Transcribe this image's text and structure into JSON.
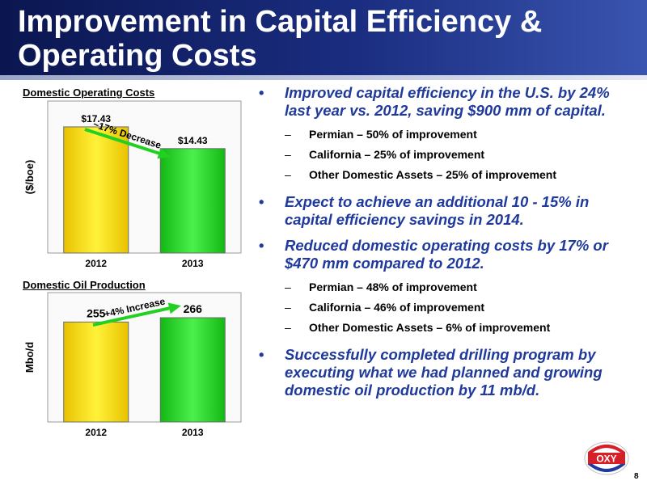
{
  "slide": {
    "title": "Improvement in Capital Efficiency & Operating Costs",
    "page_number": "8",
    "logo_text": "OXY",
    "colors": {
      "header": "#0b1650",
      "bullet_text": "#1f3a9c",
      "bar_yellow": "#ffd400",
      "bar_green": "#22d022",
      "arrow": "#22d022"
    }
  },
  "chart_data": [
    {
      "type": "bar",
      "title": "Domestic Operating Costs",
      "ylabel": "($/boe)",
      "categories": [
        "2012",
        "2013"
      ],
      "values": [
        17.43,
        14.43
      ],
      "data_labels": [
        "$17.43",
        "$14.43"
      ],
      "ylim": [
        0,
        21
      ],
      "annotation": "~17% Decrease"
    },
    {
      "type": "bar",
      "title": "Domestic Oil Production",
      "ylabel": "Mbo/d",
      "categories": [
        "2012",
        "2013"
      ],
      "values": [
        255,
        266
      ],
      "data_labels": [
        "255",
        "266"
      ],
      "ylim": [
        0,
        330
      ],
      "annotation": "+4% Increase"
    }
  ],
  "bullets": [
    {
      "text": "Improved capital efficiency in the U.S. by 24% last year vs. 2012, saving $900 mm of capital.",
      "subs": [
        "Permian – 50% of improvement",
        "California – 25% of improvement",
        "Other Domestic Assets – 25% of improvement"
      ]
    },
    {
      "text": "Expect to achieve an additional 10 - 15% in capital efficiency savings in 2014.",
      "subs": []
    },
    {
      "text": "Reduced domestic operating costs by 17% or $470 mm compared to 2012.",
      "subs": [
        "Permian – 48% of improvement",
        "California – 46% of improvement",
        "Other Domestic Assets – 6% of improvement"
      ]
    },
    {
      "text": "Successfully completed drilling program by executing what we had planned and growing domestic oil production by 11 mb/d.",
      "subs": []
    }
  ]
}
